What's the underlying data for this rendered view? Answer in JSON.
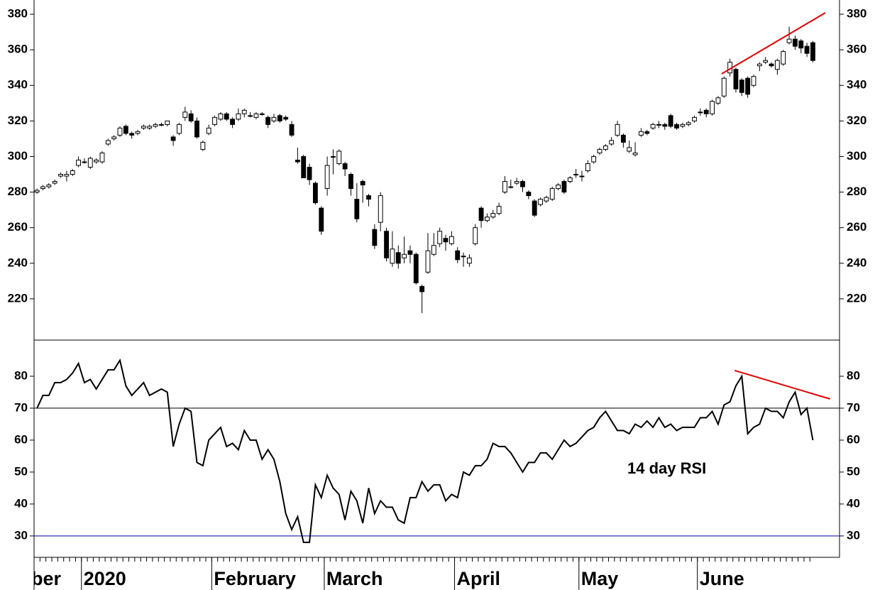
{
  "chart_data": {
    "type": "candlestick",
    "categories": [
      "ber",
      null,
      null,
      null,
      null,
      null,
      null,
      null,
      "2020",
      null,
      null,
      null,
      null,
      null,
      null,
      null,
      null,
      null,
      null,
      null,
      null,
      null,
      null,
      null,
      null,
      null,
      null,
      null,
      null,
      null,
      "February",
      null,
      null,
      null,
      null,
      null,
      null,
      null,
      null,
      null,
      null,
      null,
      null,
      null,
      null,
      null,
      null,
      null,
      null,
      "March",
      null,
      null,
      null,
      null,
      null,
      null,
      null,
      null,
      null,
      null,
      null,
      null,
      null,
      null,
      null,
      null,
      null,
      null,
      null,
      null,
      null,
      "April",
      null,
      null,
      null,
      null,
      null,
      null,
      null,
      null,
      null,
      null,
      null,
      null,
      null,
      null,
      null,
      null,
      null,
      null,
      null,
      null,
      "May",
      null,
      null,
      null,
      null,
      null,
      null,
      null,
      null,
      null,
      null,
      null,
      null,
      null,
      null,
      null,
      null,
      null,
      null,
      null,
      "June",
      null,
      null,
      null,
      null,
      null,
      null,
      null,
      null,
      null,
      null,
      null,
      null,
      null,
      null,
      null,
      null,
      null,
      null,
      null
    ],
    "xlim": [
      -0.5,
      135.5
    ],
    "ohlc": [
      [
        280,
        282,
        279,
        281
      ],
      [
        282,
        284,
        281,
        283
      ],
      [
        283,
        285,
        282,
        284
      ],
      [
        285,
        287,
        284,
        286
      ],
      [
        289,
        291,
        288,
        290
      ],
      [
        289,
        292,
        286,
        290
      ],
      [
        290,
        293,
        289,
        292
      ],
      [
        295,
        300,
        294,
        298
      ],
      [
        297,
        299,
        296,
        297
      ],
      [
        294,
        300,
        293,
        299
      ],
      [
        297,
        299,
        296,
        298
      ],
      [
        297,
        303,
        296,
        302
      ],
      [
        307,
        310,
        306,
        309
      ],
      [
        310,
        312,
        309,
        311
      ],
      [
        312,
        317,
        311,
        316
      ],
      [
        317,
        318,
        312,
        313
      ],
      [
        313,
        314,
        310,
        312
      ],
      [
        313,
        315,
        312,
        314
      ],
      [
        316,
        318,
        315,
        317
      ],
      [
        316,
        318,
        315,
        317
      ],
      [
        317,
        319,
        316,
        318
      ],
      [
        318,
        319,
        317,
        318
      ],
      [
        318,
        320,
        317,
        320
      ],
      [
        311,
        312,
        306,
        309
      ],
      [
        313,
        319,
        312,
        318
      ],
      [
        322,
        328,
        320,
        325
      ],
      [
        324,
        326,
        319,
        320
      ],
      [
        320,
        322,
        310,
        311
      ],
      [
        304,
        309,
        303,
        308
      ],
      [
        313,
        318,
        312,
        316
      ],
      [
        318,
        323,
        317,
        322
      ],
      [
        321,
        325,
        320,
        324
      ],
      [
        324,
        325,
        320,
        321
      ],
      [
        321,
        322,
        316,
        318
      ],
      [
        321,
        327,
        320,
        324
      ],
      [
        324,
        327,
        322,
        326
      ],
      [
        323,
        325,
        322,
        323
      ],
      [
        322,
        325,
        321,
        324
      ],
      [
        324,
        325,
        323,
        324
      ],
      [
        322,
        323,
        316,
        318
      ],
      [
        320,
        324,
        319,
        322
      ],
      [
        323,
        324,
        319,
        320
      ],
      [
        322,
        323,
        320,
        321
      ],
      [
        318,
        320,
        311,
        312
      ],
      [
        298,
        305,
        296,
        297
      ],
      [
        300,
        301,
        288,
        288
      ],
      [
        294,
        296,
        284,
        287
      ],
      [
        285,
        286,
        273,
        274
      ],
      [
        271,
        272,
        256,
        258
      ],
      [
        282,
        300,
        278,
        295
      ],
      [
        300,
        304,
        290,
        300
      ],
      [
        296,
        304,
        295,
        303
      ],
      [
        296,
        297,
        289,
        293
      ],
      [
        290,
        291,
        278,
        282
      ],
      [
        276,
        285,
        263,
        265
      ],
      [
        286,
        287,
        274,
        284
      ],
      [
        278,
        279,
        272,
        276
      ],
      [
        259,
        262,
        248,
        250
      ],
      [
        263,
        280,
        258,
        278
      ],
      [
        258,
        260,
        241,
        243
      ],
      [
        240,
        258,
        238,
        248
      ],
      [
        246,
        250,
        237,
        240
      ],
      [
        243,
        255,
        240,
        245
      ],
      [
        247,
        250,
        240,
        245
      ],
      [
        245,
        246,
        228,
        229
      ],
      [
        227,
        228,
        212,
        224
      ],
      [
        235,
        257,
        234,
        247
      ],
      [
        245,
        257,
        244,
        250
      ],
      [
        251,
        260,
        249,
        258
      ],
      [
        254,
        256,
        247,
        252
      ],
      [
        251,
        258,
        250,
        255
      ],
      [
        247,
        249,
        240,
        242
      ],
      [
        244,
        246,
        238,
        244
      ],
      [
        240,
        245,
        238,
        243
      ],
      [
        251,
        262,
        250,
        260
      ],
      [
        271,
        272,
        260,
        264
      ],
      [
        264,
        268,
        263,
        266
      ],
      [
        266,
        270,
        265,
        268
      ],
      [
        268,
        274,
        267,
        272
      ],
      [
        280,
        289,
        279,
        286
      ],
      [
        283,
        287,
        282,
        283
      ],
      [
        285,
        288,
        284,
        286
      ],
      [
        286,
        287,
        280,
        283
      ],
      [
        280,
        281,
        276,
        278
      ],
      [
        275,
        276,
        266,
        267
      ],
      [
        273,
        277,
        272,
        276
      ],
      [
        275,
        278,
        274,
        277
      ],
      [
        276,
        283,
        275,
        282
      ],
      [
        282,
        285,
        281,
        284
      ],
      [
        286,
        287,
        279,
        280
      ],
      [
        286,
        289,
        285,
        288
      ],
      [
        290,
        293,
        288,
        290
      ],
      [
        289,
        292,
        286,
        289
      ],
      [
        292,
        298,
        291,
        296
      ],
      [
        297,
        301,
        296,
        300
      ],
      [
        302,
        305,
        301,
        304
      ],
      [
        304,
        307,
        303,
        306
      ],
      [
        307,
        311,
        306,
        309
      ],
      [
        312,
        320,
        311,
        318
      ],
      [
        312,
        313,
        305,
        308
      ],
      [
        303,
        309,
        302,
        305
      ],
      [
        301,
        308,
        300,
        302
      ],
      [
        312,
        316,
        311,
        314
      ],
      [
        314,
        315,
        312,
        313
      ],
      [
        316,
        319,
        315,
        318
      ],
      [
        318,
        320,
        316,
        318
      ],
      [
        318,
        319,
        315,
        317
      ],
      [
        323,
        324,
        316,
        317
      ],
      [
        318,
        319,
        315,
        316
      ],
      [
        317,
        319,
        316,
        318
      ],
      [
        318,
        320,
        317,
        319
      ],
      [
        320,
        323,
        319,
        322
      ],
      [
        325,
        327,
        323,
        325
      ],
      [
        326,
        327,
        322,
        324
      ],
      [
        324,
        332,
        323,
        331
      ],
      [
        330,
        334,
        329,
        333
      ],
      [
        334,
        345,
        333,
        344
      ],
      [
        347,
        355,
        345,
        353
      ],
      [
        349,
        350,
        336,
        338
      ],
      [
        343,
        344,
        334,
        336
      ],
      [
        344,
        345,
        333,
        335
      ],
      [
        340,
        346,
        339,
        345
      ],
      [
        351,
        353,
        348,
        352
      ],
      [
        353,
        356,
        352,
        354
      ],
      [
        352,
        353,
        350,
        351
      ],
      [
        349,
        355,
        346,
        354
      ],
      [
        352,
        360,
        351,
        359
      ],
      [
        364,
        373,
        363,
        366
      ],
      [
        366,
        368,
        360,
        362
      ],
      [
        365,
        366,
        358,
        361
      ],
      [
        362,
        364,
        356,
        358
      ],
      [
        364,
        365,
        353,
        354
      ]
    ],
    "ylim": [
      197.2,
      388
    ],
    "yticks": [
      220,
      240,
      260,
      280,
      300,
      320,
      340,
      360,
      380
    ],
    "up_color": "#ffffff",
    "down_color": "#000000",
    "trendline": {
      "x": [
        115.6,
        133.1
      ],
      "y": [
        346.5,
        380.8
      ],
      "color": "#e00000"
    },
    "indicator": {
      "type": "line",
      "label": "14 day RSI",
      "label_color": "#0000ee",
      "color": "#000000",
      "values": [
        70,
        74,
        74,
        78,
        78,
        79,
        81,
        84,
        78,
        79,
        76,
        79,
        82,
        82,
        85,
        77,
        74,
        76,
        78,
        74,
        75,
        76,
        75,
        58,
        65,
        70,
        69,
        53,
        52,
        60,
        62,
        64,
        58,
        59,
        57,
        63,
        60,
        60,
        54,
        57,
        54,
        47,
        37,
        32,
        36,
        28,
        28,
        46,
        42,
        49,
        45,
        43,
        35,
        44,
        41,
        34,
        45,
        37,
        41,
        39,
        39,
        35,
        34,
        42,
        42,
        47,
        44,
        46,
        46,
        41,
        43,
        42,
        50,
        49,
        52,
        52,
        54,
        59,
        58,
        58,
        56,
        53,
        50,
        53,
        53,
        56,
        56,
        54,
        57,
        60,
        58,
        59,
        61,
        63,
        64,
        67,
        69,
        66,
        63,
        63,
        62,
        65,
        64,
        66,
        64,
        67,
        64,
        65,
        63,
        64,
        64,
        64,
        67,
        67,
        69,
        65,
        71,
        72,
        77,
        80,
        62,
        64,
        65,
        70,
        69,
        69,
        67,
        72,
        75,
        68,
        70,
        60
      ],
      "ylim": [
        23.3,
        91.1
      ],
      "yticks": [
        30,
        40,
        50,
        60,
        70,
        80
      ],
      "hlines": [
        {
          "value": 70,
          "color": "#000000"
        },
        {
          "value": 30,
          "color": "#0000aa"
        }
      ],
      "trendline": {
        "x": [
          117.8,
          133.9
        ],
        "y": [
          81.8,
          72.9
        ],
        "color": "#e00000"
      }
    }
  }
}
